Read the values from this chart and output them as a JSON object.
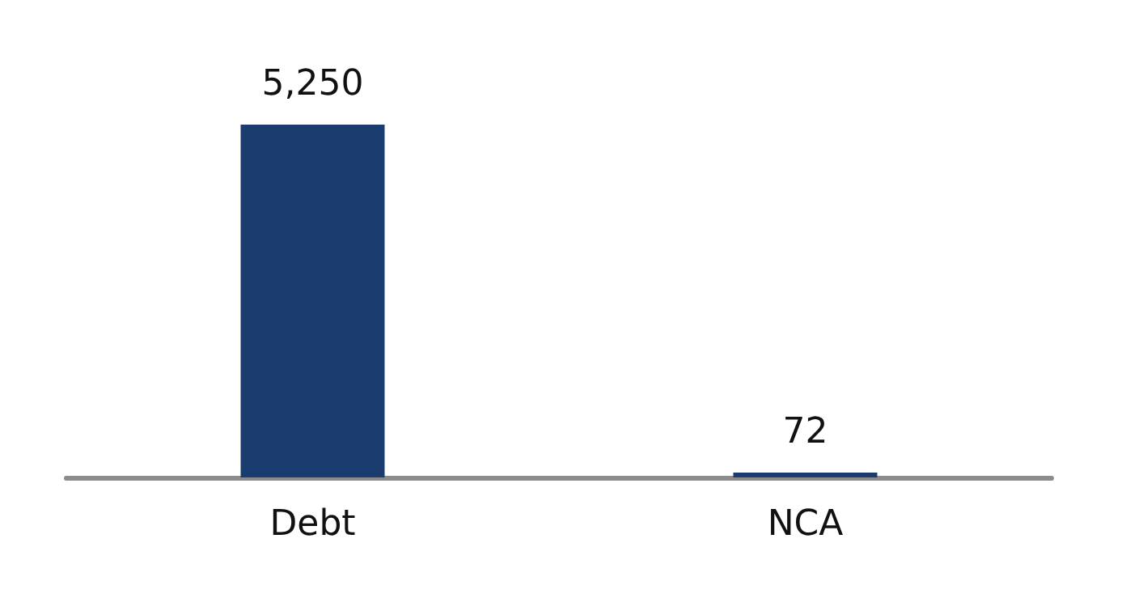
{
  "chart_data": {
    "type": "bar",
    "categories": [
      "Debt",
      "NCA"
    ],
    "values": [
      5250,
      72
    ],
    "color": "#1b3c6e",
    "value_labels": [
      "5,250",
      "72"
    ]
  }
}
